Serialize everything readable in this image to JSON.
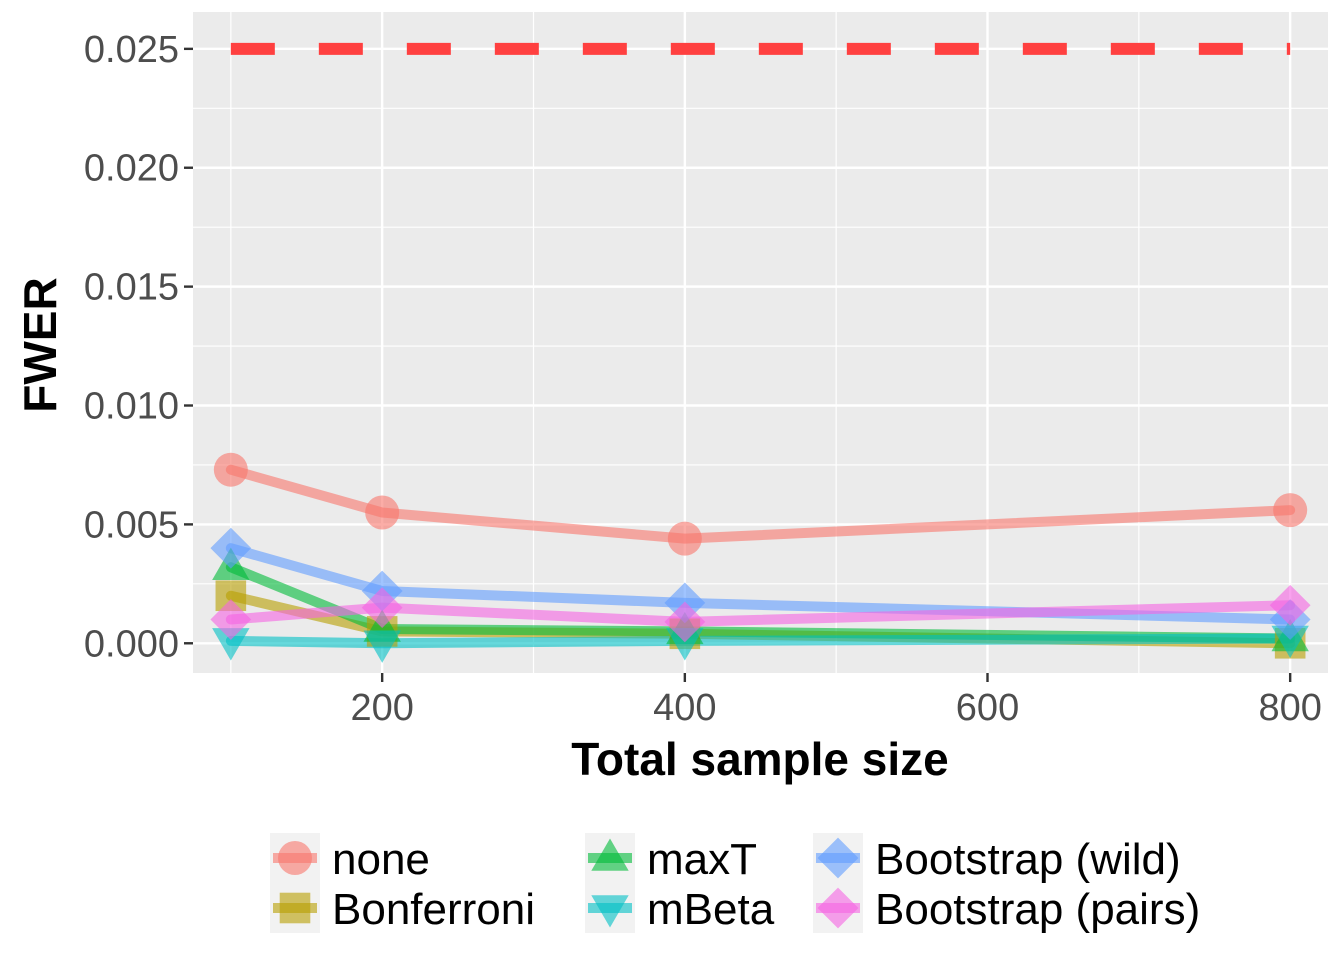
{
  "chart_data": {
    "type": "line",
    "title": "",
    "xlabel": "Total sample size",
    "ylabel": "FWER",
    "x": [
      100,
      200,
      400,
      800
    ],
    "xlim": [
      75,
      825
    ],
    "ylim": [
      -0.00125,
      0.02655
    ],
    "x_ticks": [
      200,
      400,
      600,
      800
    ],
    "x_tick_labels": [
      "200",
      "400",
      "600",
      "800"
    ],
    "y_ticks": [
      0.0,
      0.005,
      0.01,
      0.015,
      0.02,
      0.025
    ],
    "y_tick_labels": [
      "0.000",
      "0.005",
      "0.010",
      "0.015",
      "0.020",
      "0.025"
    ],
    "grid": true,
    "legend_position": "bottom",
    "reference_line": {
      "y": 0.025,
      "style": "dashed",
      "color": "#ff4040"
    },
    "series": [
      {
        "name": "none",
        "color": "#F8766D",
        "shape": "circle",
        "values": [
          0.0073,
          0.0055,
          0.0044,
          0.0056
        ]
      },
      {
        "name": "Bonferroni",
        "color": "#B79F00",
        "shape": "square",
        "values": [
          0.002,
          0.0005,
          0.0004,
          0.0
        ]
      },
      {
        "name": "maxT",
        "color": "#00BA38",
        "shape": "triangle-up",
        "values": [
          0.0032,
          0.0006,
          0.0005,
          0.0002
        ]
      },
      {
        "name": "mBeta",
        "color": "#00BFC4",
        "shape": "triangle-down",
        "values": [
          0.0001,
          0.0,
          0.0001,
          0.0002
        ]
      },
      {
        "name": "Bootstrap (wild)",
        "color": "#619CFF",
        "shape": "diamond",
        "values": [
          0.004,
          0.0022,
          0.0017,
          0.001
        ]
      },
      {
        "name": "Bootstrap (pairs)",
        "color": "#F564E3",
        "shape": "diamond",
        "values": [
          0.001,
          0.0015,
          0.0009,
          0.0016
        ]
      }
    ]
  }
}
